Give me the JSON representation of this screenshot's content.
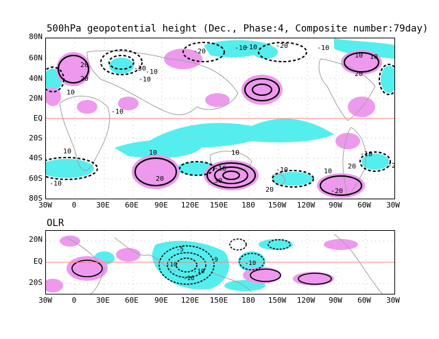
{
  "top": {
    "title": "500hPa geopotential height (Dec., Phase:4, Composite number:79day)",
    "y_ticks": [
      "80N",
      "60N",
      "40N",
      "20N",
      "EQ",
      "20S",
      "40S",
      "60S",
      "80S"
    ],
    "contour_labels": [
      "-20",
      "-10",
      "-10",
      "-20",
      "-10",
      "10",
      "10",
      "20",
      "-30",
      "-10",
      "20",
      "10",
      "-10",
      "20",
      "10",
      "10",
      "-10",
      "-10",
      "-10",
      "20",
      "30",
      "10",
      "20",
      "-10",
      "-20",
      "10",
      "20",
      "-2",
      "-10"
    ]
  },
  "bottom": {
    "title": "OLR",
    "y_ticks": [
      "20N",
      "EQ",
      "20S"
    ],
    "contour_labels": [
      "-5",
      "-16",
      "-10",
      "-9",
      "-10",
      "-10"
    ]
  },
  "x_ticks": [
    "30W",
    "0",
    "30E",
    "60E",
    "90E",
    "120E",
    "150E",
    "180",
    "150W",
    "120W",
    "90W",
    "60W",
    "30W"
  ],
  "colors": {
    "positive": "#ee99ee",
    "negative": "#55eeee",
    "coast": "#a0a0a0",
    "equator": "#ff8080",
    "contour": "#000000"
  }
}
